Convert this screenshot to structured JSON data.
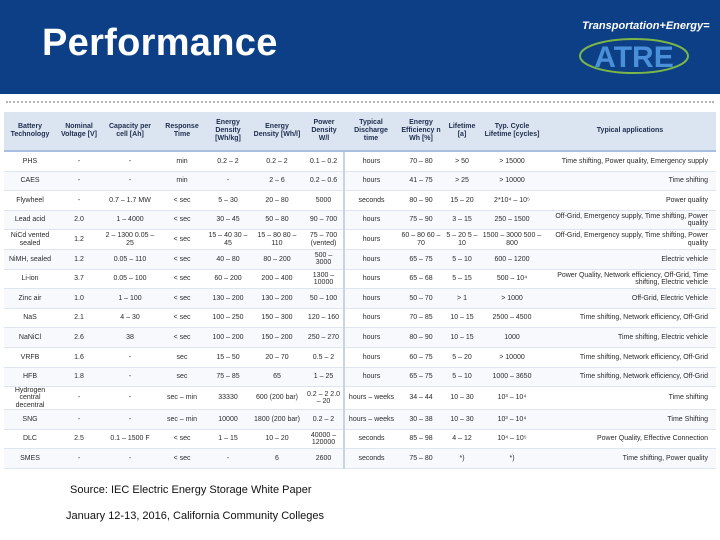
{
  "header": {
    "title": "Performance",
    "logo_text": "Transportation+Energy=",
    "logo_wordmark": "ATRE",
    "colors": {
      "header_bg": "#0d3f86",
      "logo_green": "#7ab648",
      "logo_blue": "#4a90d9"
    }
  },
  "table": {
    "columns": [
      "Battery Technology",
      "Nominal Voltage [V]",
      "Capacity per cell [Ah]",
      "Response Time",
      "Energy Density [Wh/kg]",
      "Energy Density [Wh/l]",
      "Power Density W/l",
      "Typical Discharge time",
      "Energy Efficiency n Wh [%]",
      "Lifetime [a]",
      "Typ. Cycle Lifetime [cycles]",
      "Typical applications"
    ],
    "rows": [
      [
        "PHS",
        "-",
        "-",
        "min",
        "0.2 – 2",
        "0.2 – 2",
        "0.1 – 0.2",
        "hours",
        "70 – 80",
        "> 50",
        "> 15000",
        "Time shifting, Power quality, Emergency supply"
      ],
      [
        "CAES",
        "-",
        "-",
        "min",
        "-",
        "2 – 6",
        "0.2 – 0.6",
        "hours",
        "41 – 75",
        "> 25",
        "> 10000",
        "Time shifting"
      ],
      [
        "Flywheel",
        "-",
        "0.7 – 1.7 MW",
        "< sec",
        "5 – 30",
        "20 – 80",
        "5000",
        "seconds",
        "80 – 90",
        "15 – 20",
        "2*10⁴ – 10⁵",
        "Power quality"
      ],
      [
        "Lead acid",
        "2.0",
        "1 – 4000",
        "< sec",
        "30 – 45",
        "50 – 80",
        "90 – 700",
        "hours",
        "75 – 90",
        "3 – 15",
        "250 – 1500",
        "Off-Grid, Emergency supply, Time shifting, Power quality"
      ],
      [
        "NiCd vented sealed",
        "1.2",
        "2 – 1300 0.05 – 25",
        "< sec",
        "15 – 40 30 – 45",
        "15 – 80 80 – 110",
        "75 – 700 (vented)",
        "hours",
        "60 – 80 60 – 70",
        "5 – 20 5 – 10",
        "1500 – 3000 500 – 800",
        "Off-Grid, Emergency supply, Time shifting, Power quality"
      ],
      [
        "NiMH, sealed",
        "1.2",
        "0.05 – 110",
        "< sec",
        "40 – 80",
        "80 – 200",
        "500 – 3000",
        "hours",
        "65 – 75",
        "5 – 10",
        "600 – 1200",
        "Electric vehicle"
      ],
      [
        "Li-ion",
        "3.7",
        "0.05 – 100",
        "< sec",
        "60 – 200",
        "200 – 400",
        "1300 – 10000",
        "hours",
        "65 – 68",
        "5 – 15",
        "500 – 10⁴",
        "Power Quality, Network efficiency, Off-Grid, Time shifting, Electric vehicle"
      ],
      [
        "Zinc air",
        "1.0",
        "1 – 100",
        "< sec",
        "130 – 200",
        "130 – 200",
        "50 – 100",
        "hours",
        "50 – 70",
        "> 1",
        "> 1000",
        "Off-Grid, Electric Vehicle"
      ],
      [
        "NaS",
        "2.1",
        "4 – 30",
        "< sec",
        "100 – 250",
        "150 – 300",
        "120 – 160",
        "hours",
        "70 – 85",
        "10 – 15",
        "2500 – 4500",
        "Time shifting, Network efficiency, Off-Grid"
      ],
      [
        "NaNiCl",
        "2.6",
        "38",
        "< sec",
        "100 – 200",
        "150 – 200",
        "250 – 270",
        "hours",
        "80 – 90",
        "10 – 15",
        "1000",
        "Time shifting, Electric vehicle"
      ],
      [
        "VRFB",
        "1.6",
        "-",
        "sec",
        "15 – 50",
        "20 – 70",
        "0.5 – 2",
        "hours",
        "60 – 75",
        "5 – 20",
        "> 10000",
        "Time shifting, Network efficiency, Off-Grid"
      ],
      [
        "HFB",
        "1.8",
        "-",
        "sec",
        "75 – 85",
        "65",
        "1 – 25",
        "hours",
        "65 – 75",
        "5 – 10",
        "1000 – 3650",
        "Time shifting, Network efficiency, Off-Grid"
      ],
      [
        "Hydrogen central decentral",
        "-",
        "-",
        "sec – min",
        "33330",
        "600 (200 bar)",
        "0.2 – 2 2.0 – 20",
        "hours – weeks",
        "34 – 44",
        "10 – 30",
        "10³ – 10⁴",
        "Time shifting"
      ],
      [
        "SNG",
        "-",
        "-",
        "sec – min",
        "10000",
        "1800 (200 bar)",
        "0.2 – 2",
        "hours – weeks",
        "30 – 38",
        "10 – 30",
        "10³ – 10⁴",
        "Time Shifting"
      ],
      [
        "DLC",
        "2.5",
        "0.1 – 1500 F",
        "< sec",
        "1 – 15",
        "10 – 20",
        "40000 – 120000",
        "seconds",
        "85 – 98",
        "4 – 12",
        "10⁴ – 10⁵",
        "Power Quality, Effective Connection"
      ],
      [
        "SMES",
        "-",
        "-",
        "< sec",
        "-",
        "6",
        "2600",
        "seconds",
        "75 – 80",
        "*)",
        "*)",
        "Time shifting, Power quality"
      ]
    ]
  },
  "footer": {
    "source": "Source: IEC Electric Energy Storage White Paper",
    "date": "January 12-13, 2016, California Community Colleges"
  }
}
